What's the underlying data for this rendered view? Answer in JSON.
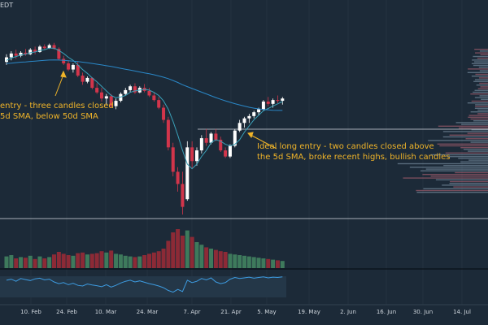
{
  "chart_data": {
    "type": "candlestick",
    "corner_label": "EDT",
    "x_ticks": [
      "10. Feb",
      "24. Feb",
      "10. Mar",
      "24. Mar",
      "7. Apr",
      "21. Apr",
      "5. May",
      "19. May",
      "2. Jun",
      "16. Jun",
      "30. Jun",
      "14. Jul"
    ],
    "annotations": [
      "entry - three candles closed\n5d SMA, below 50d SMA",
      "Ideal long entry - two candles closed above\nthe 5d SMA, broke recent highs, bullish candles"
    ],
    "candles": [
      {
        "o": 6000,
        "h": 6050,
        "l": 5980,
        "c": 6030
      },
      {
        "o": 6030,
        "h": 6070,
        "l": 6010,
        "c": 6055
      },
      {
        "o": 6055,
        "h": 6080,
        "l": 6020,
        "c": 6040
      },
      {
        "o": 6040,
        "h": 6070,
        "l": 6030,
        "c": 6060
      },
      {
        "o": 6060,
        "h": 6085,
        "l": 6040,
        "c": 6050
      },
      {
        "o": 6050,
        "h": 6090,
        "l": 6045,
        "c": 6080
      },
      {
        "o": 6080,
        "h": 6100,
        "l": 6050,
        "c": 6065
      },
      {
        "o": 6065,
        "h": 6110,
        "l": 6060,
        "c": 6100
      },
      {
        "o": 6100,
        "h": 6115,
        "l": 6080,
        "c": 6090
      },
      {
        "o": 6090,
        "h": 6120,
        "l": 6085,
        "c": 6110
      },
      {
        "o": 6110,
        "h": 6125,
        "l": 6080,
        "c": 6085
      },
      {
        "o": 6085,
        "h": 6095,
        "l": 6010,
        "c": 6020
      },
      {
        "o": 6020,
        "h": 6040,
        "l": 5980,
        "c": 5990
      },
      {
        "o": 5990,
        "h": 6010,
        "l": 5940,
        "c": 5950
      },
      {
        "o": 5950,
        "h": 5990,
        "l": 5930,
        "c": 5980
      },
      {
        "o": 5980,
        "h": 6000,
        "l": 5900,
        "c": 5910
      },
      {
        "o": 5910,
        "h": 5930,
        "l": 5850,
        "c": 5870
      },
      {
        "o": 5870,
        "h": 5905,
        "l": 5860,
        "c": 5895
      },
      {
        "o": 5895,
        "h": 5900,
        "l": 5820,
        "c": 5830
      },
      {
        "o": 5830,
        "h": 5860,
        "l": 5790,
        "c": 5800
      },
      {
        "o": 5800,
        "h": 5830,
        "l": 5740,
        "c": 5760
      },
      {
        "o": 5760,
        "h": 5790,
        "l": 5720,
        "c": 5775
      },
      {
        "o": 5775,
        "h": 5790,
        "l": 5700,
        "c": 5710
      },
      {
        "o": 5710,
        "h": 5760,
        "l": 5690,
        "c": 5745
      },
      {
        "o": 5745,
        "h": 5800,
        "l": 5735,
        "c": 5790
      },
      {
        "o": 5790,
        "h": 5830,
        "l": 5780,
        "c": 5815
      },
      {
        "o": 5815,
        "h": 5850,
        "l": 5800,
        "c": 5840
      },
      {
        "o": 5840,
        "h": 5860,
        "l": 5790,
        "c": 5800
      },
      {
        "o": 5800,
        "h": 5840,
        "l": 5795,
        "c": 5830
      },
      {
        "o": 5830,
        "h": 5855,
        "l": 5800,
        "c": 5810
      },
      {
        "o": 5810,
        "h": 5830,
        "l": 5770,
        "c": 5780
      },
      {
        "o": 5780,
        "h": 5800,
        "l": 5740,
        "c": 5750
      },
      {
        "o": 5750,
        "h": 5770,
        "l": 5690,
        "c": 5700
      },
      {
        "o": 5700,
        "h": 5720,
        "l": 5600,
        "c": 5620
      },
      {
        "o": 5620,
        "h": 5640,
        "l": 5420,
        "c": 5440
      },
      {
        "o": 5440,
        "h": 5470,
        "l": 5250,
        "c": 5280
      },
      {
        "o": 5280,
        "h": 5310,
        "l": 5150,
        "c": 5200
      },
      {
        "o": 5200,
        "h": 5280,
        "l": 5000,
        "c": 5050
      },
      {
        "o": 5100,
        "h": 5480,
        "l": 5090,
        "c": 5440
      },
      {
        "o": 5440,
        "h": 5480,
        "l": 5300,
        "c": 5350
      },
      {
        "o": 5350,
        "h": 5440,
        "l": 5320,
        "c": 5420
      },
      {
        "o": 5420,
        "h": 5520,
        "l": 5400,
        "c": 5500
      },
      {
        "o": 5500,
        "h": 5560,
        "l": 5450,
        "c": 5470
      },
      {
        "o": 5470,
        "h": 5540,
        "l": 5460,
        "c": 5530
      },
      {
        "o": 5530,
        "h": 5560,
        "l": 5480,
        "c": 5490
      },
      {
        "o": 5490,
        "h": 5510,
        "l": 5410,
        "c": 5420
      },
      {
        "o": 5420,
        "h": 5440,
        "l": 5370,
        "c": 5380
      },
      {
        "o": 5380,
        "h": 5460,
        "l": 5370,
        "c": 5450
      },
      {
        "o": 5450,
        "h": 5560,
        "l": 5440,
        "c": 5550
      },
      {
        "o": 5550,
        "h": 5620,
        "l": 5540,
        "c": 5600
      },
      {
        "o": 5600,
        "h": 5640,
        "l": 5570,
        "c": 5630
      },
      {
        "o": 5630,
        "h": 5660,
        "l": 5600,
        "c": 5645
      },
      {
        "o": 5645,
        "h": 5680,
        "l": 5630,
        "c": 5670
      },
      {
        "o": 5670,
        "h": 5700,
        "l": 5650,
        "c": 5690
      },
      {
        "o": 5690,
        "h": 5750,
        "l": 5680,
        "c": 5740
      },
      {
        "o": 5740,
        "h": 5770,
        "l": 5710,
        "c": 5725
      },
      {
        "o": 5725,
        "h": 5760,
        "l": 5700,
        "c": 5750
      },
      {
        "o": 5750,
        "h": 5780,
        "l": 5730,
        "c": 5745
      },
      {
        "o": 5745,
        "h": 5770,
        "l": 5720,
        "c": 5760
      }
    ],
    "sma5": [
      6010,
      6025,
      6035,
      6045,
      6050,
      6060,
      6065,
      6075,
      6080,
      6090,
      6090,
      6075,
      6055,
      6030,
      6010,
      5980,
      5950,
      5925,
      5895,
      5870,
      5840,
      5810,
      5780,
      5765,
      5770,
      5780,
      5800,
      5810,
      5815,
      5820,
      5815,
      5800,
      5780,
      5745,
      5690,
      5610,
      5520,
      5420,
      5330,
      5300,
      5330,
      5380,
      5420,
      5470,
      5490,
      5480,
      5460,
      5450,
      5460,
      5490,
      5540,
      5580,
      5620,
      5650,
      5680,
      5695,
      5710,
      5725,
      5740
    ],
    "sma50": [
      5990,
      5992,
      5995,
      5998,
      6000,
      6003,
      6005,
      6008,
      6010,
      6012,
      6013,
      6012,
      6010,
      6008,
      6005,
      6002,
      5998,
      5994,
      5990,
      5985,
      5980,
      5975,
      5970,
      5964,
      5958,
      5952,
      5946,
      5940,
      5934,
      5928,
      5922,
      5916,
      5908,
      5900,
      5890,
      5878,
      5865,
      5850,
      5838,
      5826,
      5814,
      5802,
      5790,
      5778,
      5766,
      5755,
      5745,
      5735,
      5726,
      5718,
      5710,
      5703,
      5697,
      5692,
      5688,
      5685,
      5683,
      5682,
      5682
    ],
    "volume": [
      18,
      20,
      15,
      17,
      16,
      19,
      14,
      18,
      15,
      17,
      21,
      25,
      22,
      20,
      19,
      23,
      24,
      21,
      22,
      23,
      26,
      24,
      27,
      22,
      21,
      19,
      18,
      17,
      18,
      20,
      22,
      24,
      26,
      30,
      42,
      55,
      60,
      50,
      58,
      48,
      40,
      36,
      32,
      30,
      28,
      26,
      25,
      22,
      21,
      20,
      19,
      18,
      17,
      16,
      15,
      14,
      13,
      12,
      11
    ],
    "oscillator": [
      55,
      58,
      52,
      60,
      57,
      54,
      59,
      61,
      56,
      58,
      50,
      45,
      48,
      42,
      46,
      40,
      38,
      44,
      41,
      39,
      36,
      42,
      35,
      40,
      47,
      52,
      55,
      50,
      53,
      49,
      45,
      42,
      38,
      33,
      25,
      20,
      28,
      22,
      55,
      48,
      52,
      60,
      56,
      62,
      50,
      45,
      48,
      58,
      63,
      60,
      62,
      64,
      61,
      63,
      65,
      62,
      64,
      63,
      65
    ]
  }
}
